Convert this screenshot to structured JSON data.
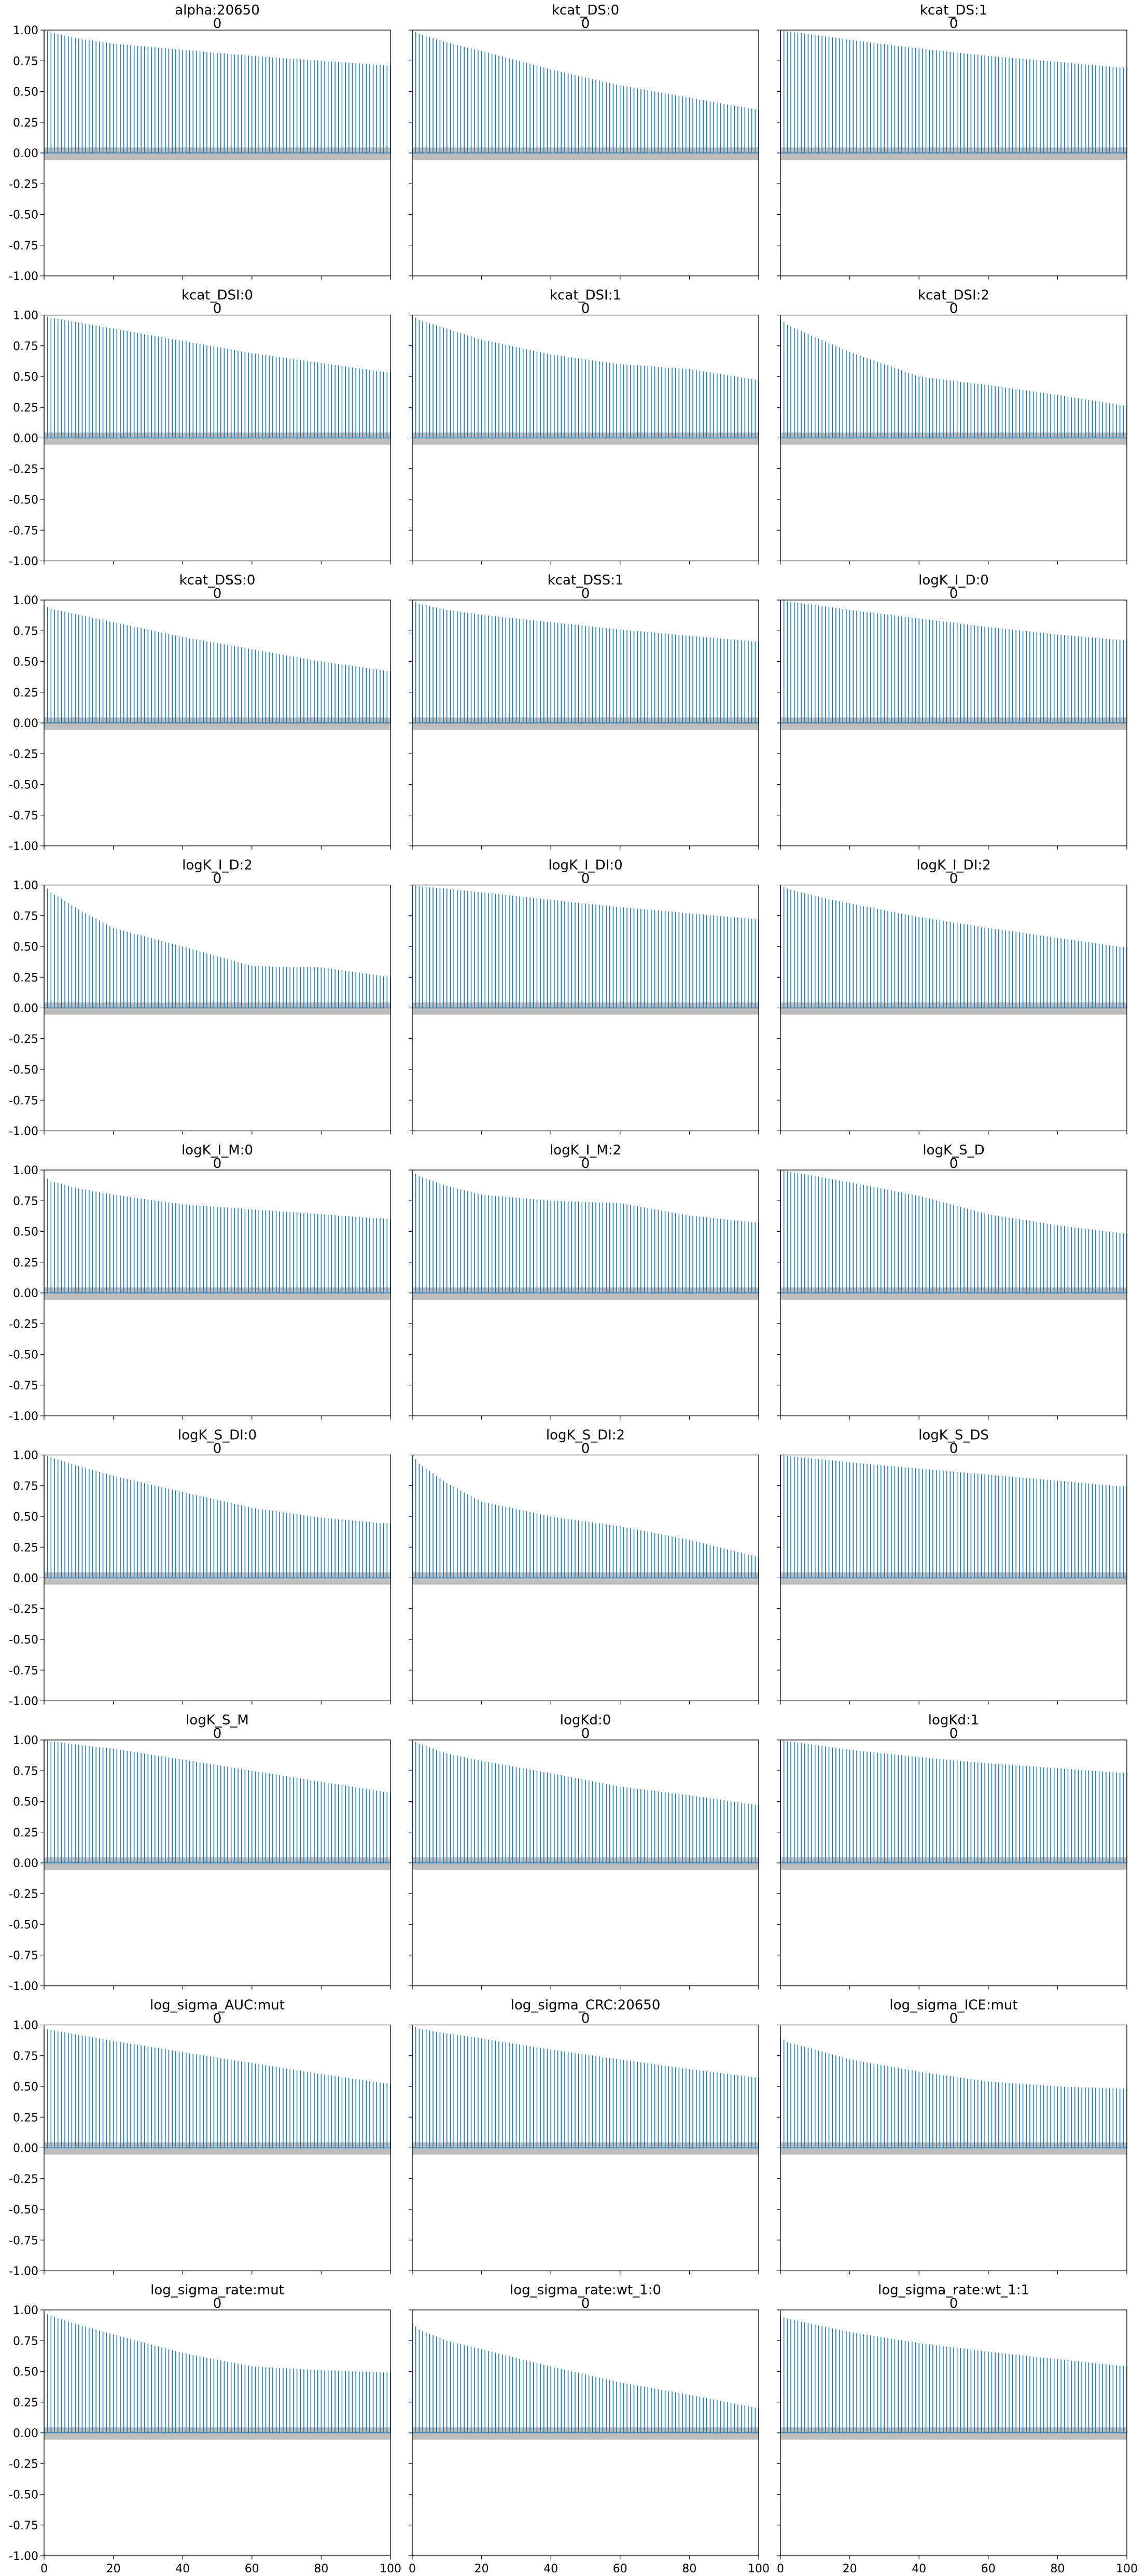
{
  "figure": {
    "type": "autocorrelation-grid",
    "accent_color": "#1f77b4",
    "band_color": "#bdbdbd"
  },
  "axes": {
    "y_ticks": [
      "1.00",
      "0.75",
      "0.50",
      "0.25",
      "0.00",
      "-0.25",
      "-0.50",
      "-0.75",
      "-1.00"
    ],
    "x_ticks": [
      "0",
      "20",
      "40",
      "60",
      "80",
      "100"
    ]
  },
  "chart_data": [
    {
      "type": "bar",
      "title": "alpha:20650",
      "subtitle": "0",
      "xlim": [
        0,
        100
      ],
      "ylim": [
        -1,
        1
      ],
      "decay": {
        "lags": [
          0,
          2,
          10,
          20,
          40,
          60,
          80,
          100
        ],
        "values": [
          1.0,
          0.98,
          0.93,
          0.89,
          0.84,
          0.79,
          0.75,
          0.71
        ]
      }
    },
    {
      "type": "bar",
      "title": "kcat_DS:0",
      "subtitle": "0",
      "xlim": [
        0,
        100
      ],
      "ylim": [
        -1,
        1
      ],
      "decay": {
        "lags": [
          0,
          2,
          10,
          20,
          40,
          60,
          80,
          100
        ],
        "values": [
          1.0,
          0.97,
          0.9,
          0.83,
          0.68,
          0.55,
          0.45,
          0.35
        ]
      }
    },
    {
      "type": "bar",
      "title": "kcat_DS:1",
      "subtitle": "0",
      "xlim": [
        0,
        100
      ],
      "ylim": [
        -1,
        1
      ],
      "decay": {
        "lags": [
          0,
          2,
          10,
          20,
          40,
          60,
          80,
          100
        ],
        "values": [
          1.0,
          0.99,
          0.96,
          0.92,
          0.85,
          0.79,
          0.74,
          0.69
        ]
      }
    },
    {
      "type": "bar",
      "title": "kcat_DSI:0",
      "subtitle": "0",
      "xlim": [
        0,
        100
      ],
      "ylim": [
        -1,
        1
      ],
      "decay": {
        "lags": [
          0,
          2,
          10,
          20,
          40,
          60,
          80,
          100
        ],
        "values": [
          1.0,
          0.98,
          0.94,
          0.89,
          0.79,
          0.69,
          0.61,
          0.53
        ]
      }
    },
    {
      "type": "bar",
      "title": "kcat_DSI:1",
      "subtitle": "0",
      "xlim": [
        0,
        100
      ],
      "ylim": [
        -1,
        1
      ],
      "decay": {
        "lags": [
          0,
          2,
          10,
          20,
          40,
          60,
          80,
          100
        ],
        "values": [
          1.0,
          0.96,
          0.89,
          0.8,
          0.68,
          0.6,
          0.56,
          0.47
        ]
      }
    },
    {
      "type": "bar",
      "title": "kcat_DSI:2",
      "subtitle": "0",
      "xlim": [
        0,
        100
      ],
      "ylim": [
        -1,
        1
      ],
      "decay": {
        "lags": [
          0,
          2,
          10,
          20,
          40,
          60,
          80,
          100
        ],
        "values": [
          0.97,
          0.92,
          0.82,
          0.7,
          0.5,
          0.43,
          0.35,
          0.26
        ]
      }
    },
    {
      "type": "bar",
      "title": "kcat_DSS:0",
      "subtitle": "0",
      "xlim": [
        0,
        100
      ],
      "ylim": [
        -1,
        1
      ],
      "decay": {
        "lags": [
          0,
          2,
          10,
          20,
          40,
          60,
          80,
          100
        ],
        "values": [
          0.96,
          0.93,
          0.88,
          0.82,
          0.7,
          0.6,
          0.5,
          0.42
        ]
      }
    },
    {
      "type": "bar",
      "title": "kcat_DSS:1",
      "subtitle": "0",
      "xlim": [
        0,
        100
      ],
      "ylim": [
        -1,
        1
      ],
      "decay": {
        "lags": [
          0,
          2,
          10,
          20,
          40,
          60,
          80,
          100
        ],
        "values": [
          1.0,
          0.97,
          0.92,
          0.88,
          0.82,
          0.76,
          0.71,
          0.66
        ]
      }
    },
    {
      "type": "bar",
      "title": "logK_I_D:0",
      "subtitle": "0",
      "xlim": [
        0,
        100
      ],
      "ylim": [
        -1,
        1
      ],
      "decay": {
        "lags": [
          0,
          2,
          10,
          20,
          40,
          60,
          80,
          100
        ],
        "values": [
          1.0,
          0.99,
          0.96,
          0.92,
          0.85,
          0.78,
          0.72,
          0.67
        ]
      }
    },
    {
      "type": "bar",
      "title": "logK_I_D:2",
      "subtitle": "0",
      "xlim": [
        0,
        100
      ],
      "ylim": [
        -1,
        1
      ],
      "decay": {
        "lags": [
          0,
          2,
          10,
          20,
          40,
          60,
          80,
          100
        ],
        "values": [
          1.0,
          0.94,
          0.8,
          0.65,
          0.5,
          0.34,
          0.33,
          0.25
        ]
      }
    },
    {
      "type": "bar",
      "title": "logK_I_DI:0",
      "subtitle": "0",
      "xlim": [
        0,
        100
      ],
      "ylim": [
        -1,
        1
      ],
      "decay": {
        "lags": [
          0,
          2,
          10,
          20,
          40,
          60,
          80,
          100
        ],
        "values": [
          1.0,
          0.99,
          0.97,
          0.94,
          0.88,
          0.82,
          0.77,
          0.72
        ]
      }
    },
    {
      "type": "bar",
      "title": "logK_I_DI:2",
      "subtitle": "0",
      "xlim": [
        0,
        100
      ],
      "ylim": [
        -1,
        1
      ],
      "decay": {
        "lags": [
          0,
          2,
          10,
          20,
          40,
          60,
          80,
          100
        ],
        "values": [
          1.0,
          0.97,
          0.91,
          0.85,
          0.74,
          0.65,
          0.57,
          0.49
        ]
      }
    },
    {
      "type": "bar",
      "title": "logK_I_M:0",
      "subtitle": "0",
      "xlim": [
        0,
        100
      ],
      "ylim": [
        -1,
        1
      ],
      "decay": {
        "lags": [
          0,
          2,
          10,
          20,
          40,
          60,
          80,
          100
        ],
        "values": [
          0.95,
          0.91,
          0.85,
          0.8,
          0.72,
          0.68,
          0.64,
          0.6
        ]
      }
    },
    {
      "type": "bar",
      "title": "logK_I_M:2",
      "subtitle": "0",
      "xlim": [
        0,
        100
      ],
      "ylim": [
        -1,
        1
      ],
      "decay": {
        "lags": [
          0,
          2,
          10,
          20,
          40,
          60,
          80,
          100
        ],
        "values": [
          0.99,
          0.95,
          0.87,
          0.8,
          0.75,
          0.73,
          0.63,
          0.57
        ]
      }
    },
    {
      "type": "bar",
      "title": "logK_S_D",
      "subtitle": "0",
      "xlim": [
        0,
        100
      ],
      "ylim": [
        -1,
        1
      ],
      "decay": {
        "lags": [
          0,
          2,
          10,
          20,
          40,
          60,
          80,
          100
        ],
        "values": [
          1.0,
          0.99,
          0.95,
          0.9,
          0.79,
          0.64,
          0.55,
          0.48
        ]
      }
    },
    {
      "type": "bar",
      "title": "logK_S_DI:0",
      "subtitle": "0",
      "xlim": [
        0,
        100
      ],
      "ylim": [
        -1,
        1
      ],
      "decay": {
        "lags": [
          0,
          2,
          10,
          20,
          40,
          60,
          80,
          100
        ],
        "values": [
          1.0,
          0.98,
          0.91,
          0.83,
          0.7,
          0.57,
          0.49,
          0.44
        ]
      }
    },
    {
      "type": "bar",
      "title": "logK_S_DI:2",
      "subtitle": "0",
      "xlim": [
        0,
        100
      ],
      "ylim": [
        -1,
        1
      ],
      "decay": {
        "lags": [
          0,
          2,
          10,
          20,
          40,
          60,
          80,
          100
        ],
        "values": [
          1.0,
          0.93,
          0.77,
          0.62,
          0.5,
          0.42,
          0.31,
          0.17
        ]
      }
    },
    {
      "type": "bar",
      "title": "logK_S_DS",
      "subtitle": "0",
      "xlim": [
        0,
        100
      ],
      "ylim": [
        -1,
        1
      ],
      "decay": {
        "lags": [
          0,
          2,
          10,
          20,
          40,
          60,
          80,
          100
        ],
        "values": [
          1.0,
          0.99,
          0.97,
          0.94,
          0.89,
          0.84,
          0.79,
          0.74
        ]
      }
    },
    {
      "type": "bar",
      "title": "logK_S_M",
      "subtitle": "0",
      "xlim": [
        0,
        100
      ],
      "ylim": [
        -1,
        1
      ],
      "decay": {
        "lags": [
          0,
          2,
          10,
          20,
          40,
          60,
          80,
          100
        ],
        "values": [
          1.0,
          0.99,
          0.96,
          0.93,
          0.84,
          0.75,
          0.66,
          0.57
        ]
      }
    },
    {
      "type": "bar",
      "title": "logKd:0",
      "subtitle": "0",
      "xlim": [
        0,
        100
      ],
      "ylim": [
        -1,
        1
      ],
      "decay": {
        "lags": [
          0,
          2,
          10,
          20,
          40,
          60,
          80,
          100
        ],
        "values": [
          1.0,
          0.97,
          0.89,
          0.83,
          0.73,
          0.62,
          0.55,
          0.47
        ]
      }
    },
    {
      "type": "bar",
      "title": "logKd:1",
      "subtitle": "0",
      "xlim": [
        0,
        100
      ],
      "ylim": [
        -1,
        1
      ],
      "decay": {
        "lags": [
          0,
          2,
          10,
          20,
          40,
          60,
          80,
          100
        ],
        "values": [
          1.0,
          0.99,
          0.96,
          0.92,
          0.86,
          0.81,
          0.77,
          0.73
        ]
      }
    },
    {
      "type": "bar",
      "title": "log_sigma_AUC:mut",
      "subtitle": "0",
      "xlim": [
        0,
        100
      ],
      "ylim": [
        -1,
        1
      ],
      "decay": {
        "lags": [
          0,
          2,
          10,
          20,
          40,
          60,
          80,
          100
        ],
        "values": [
          0.97,
          0.96,
          0.92,
          0.87,
          0.78,
          0.69,
          0.6,
          0.52
        ]
      }
    },
    {
      "type": "bar",
      "title": "log_sigma_CRC:20650",
      "subtitle": "0",
      "xlim": [
        0,
        100
      ],
      "ylim": [
        -1,
        1
      ],
      "decay": {
        "lags": [
          0,
          2,
          10,
          20,
          40,
          60,
          80,
          100
        ],
        "values": [
          1.0,
          0.97,
          0.93,
          0.89,
          0.8,
          0.72,
          0.64,
          0.57
        ]
      }
    },
    {
      "type": "bar",
      "title": "log_sigma_ICE:mut",
      "subtitle": "0",
      "xlim": [
        0,
        100
      ],
      "ylim": [
        -1,
        1
      ],
      "decay": {
        "lags": [
          0,
          2,
          10,
          20,
          40,
          60,
          80,
          100
        ],
        "values": [
          0.9,
          0.86,
          0.8,
          0.72,
          0.62,
          0.54,
          0.5,
          0.48
        ]
      }
    },
    {
      "type": "bar",
      "title": "log_sigma_rate:mut",
      "subtitle": "0",
      "xlim": [
        0,
        100
      ],
      "ylim": [
        -1,
        1
      ],
      "decay": {
        "lags": [
          0,
          2,
          10,
          20,
          40,
          60,
          80,
          100
        ],
        "values": [
          0.98,
          0.95,
          0.88,
          0.8,
          0.65,
          0.54,
          0.51,
          0.49
        ]
      }
    },
    {
      "type": "bar",
      "title": "log_sigma_rate:wt_1:0",
      "subtitle": "0",
      "xlim": [
        0,
        100
      ],
      "ylim": [
        -1,
        1
      ],
      "decay": {
        "lags": [
          0,
          2,
          10,
          20,
          40,
          60,
          80,
          100
        ],
        "values": [
          0.89,
          0.84,
          0.75,
          0.68,
          0.54,
          0.41,
          0.31,
          0.2
        ]
      }
    },
    {
      "type": "bar",
      "title": "log_sigma_rate:wt_1:1",
      "subtitle": "0",
      "xlim": [
        0,
        100
      ],
      "ylim": [
        -1,
        1
      ],
      "decay": {
        "lags": [
          0,
          2,
          10,
          20,
          40,
          60,
          80,
          100
        ],
        "values": [
          0.95,
          0.93,
          0.88,
          0.82,
          0.73,
          0.66,
          0.6,
          0.54
        ]
      }
    }
  ]
}
